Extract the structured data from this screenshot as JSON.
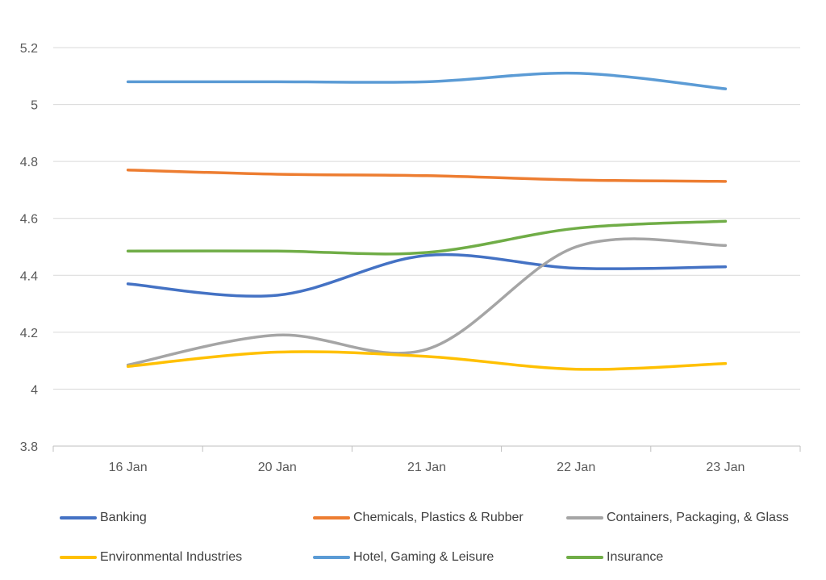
{
  "chart_data": {
    "type": "line",
    "smoothed": true,
    "title": "",
    "xlabel": "",
    "ylabel": "",
    "categories": [
      "16 Jan",
      "20 Jan",
      "21 Jan",
      "22 Jan",
      "23 Jan"
    ],
    "ylim": [
      3.8,
      5.2
    ],
    "yticks": [
      "3.8",
      "4",
      "4.2",
      "4.4",
      "4.6",
      "4.8",
      "5",
      "5.2"
    ],
    "grid": true,
    "legend_position": "bottom",
    "series": [
      {
        "name": "Banking",
        "color": "#4472C4",
        "values": [
          4.37,
          4.33,
          4.47,
          4.425,
          4.43
        ]
      },
      {
        "name": "Chemicals, Plastics & Rubber",
        "color": "#ED7D31",
        "values": [
          4.77,
          4.755,
          4.75,
          4.735,
          4.73
        ]
      },
      {
        "name": "Containers, Packaging, & Glass",
        "color": "#A5A5A5",
        "values": [
          4.085,
          4.19,
          4.14,
          4.5,
          4.505
        ]
      },
      {
        "name": "Environmental Industries",
        "color": "#FFC000",
        "values": [
          4.08,
          4.13,
          4.115,
          4.07,
          4.09
        ]
      },
      {
        "name": "Hotel, Gaming & Leisure",
        "color": "#5B9BD5",
        "values": [
          5.08,
          5.08,
          5.08,
          5.11,
          5.055
        ]
      },
      {
        "name": "Insurance",
        "color": "#70AD47",
        "values": [
          4.485,
          4.485,
          4.48,
          4.565,
          4.59
        ]
      }
    ]
  }
}
